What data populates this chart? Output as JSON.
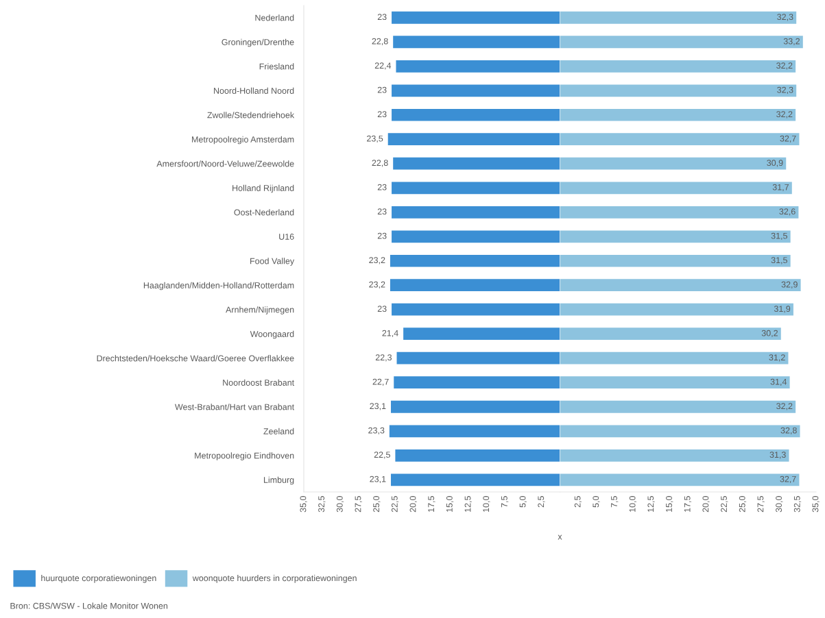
{
  "chart_data": [
    {
      "type": "bar",
      "orientation": "horizontal",
      "xlabel": "x",
      "categories": [
        "Nederland",
        "Groningen/Drenthe",
        "Friesland",
        "Noord-Holland Noord",
        "Zwolle/Stedendriehoek",
        "Metropoolregio Amsterdam",
        "Amersfoort/Noord-Veluwe/Zeewolde",
        "Holland Rijnland",
        "Oost-Nederland",
        "U16",
        "Food Valley",
        "Haaglanden/Midden-Holland/Rotterdam",
        "Arnhem/Nijmegen",
        "Woongaard",
        "Drechtsteden/Hoeksche Waard/Goeree Overflakkee",
        "Noordoost Brabant",
        "West-Brabant/Hart van Brabant",
        "Zeeland",
        "Metropoolregio Eindhoven",
        "Limburg"
      ],
      "series": [
        {
          "name": "huurquote corporatiewoningen",
          "color": "#3b8fd4",
          "values": [
            23,
            22.8,
            22.4,
            23,
            23,
            23.5,
            22.8,
            23,
            23,
            23,
            23.2,
            23.2,
            23,
            21.4,
            22.3,
            22.7,
            23.1,
            23.3,
            22.5,
            23.1
          ],
          "value_labels": [
            "23",
            "22,8",
            "22,4",
            "23",
            "23",
            "23,5",
            "22,8",
            "23",
            "23",
            "23",
            "23,2",
            "23,2",
            "23",
            "21,4",
            "22,3",
            "22,7",
            "23,1",
            "23,3",
            "22,5",
            "23,1"
          ]
        }
      ],
      "xlim": [
        35,
        0
      ],
      "xticks": [
        {
          "value": 35,
          "label": "35,0"
        },
        {
          "value": 32.5,
          "label": "32,5"
        },
        {
          "value": 30,
          "label": "30,0"
        },
        {
          "value": 27.5,
          "label": "27,5"
        },
        {
          "value": 25,
          "label": "25,0"
        },
        {
          "value": 22.5,
          "label": "22,5"
        },
        {
          "value": 20,
          "label": "20,0"
        },
        {
          "value": 17.5,
          "label": "17,5"
        },
        {
          "value": 15,
          "label": "15,0"
        },
        {
          "value": 12.5,
          "label": "12,5"
        },
        {
          "value": 10,
          "label": "10,0"
        },
        {
          "value": 7.5,
          "label": "7,5"
        },
        {
          "value": 5,
          "label": "5,0"
        },
        {
          "value": 2.5,
          "label": "2,5"
        }
      ],
      "legend": "bottom left",
      "annotations": [
        "Bron: CBS/WSW - Lokale Monitor Wonen"
      ]
    },
    {
      "type": "bar",
      "orientation": "horizontal",
      "tick_labels": "x",
      "categories": [
        "Nederland",
        "Groningen/Drenthe",
        "Friesland",
        "Noord-Holland Noord",
        "Zwolle/Stedendriehoek",
        "Metropoolregio Amsterdam",
        "Amersfoort/Noord-Veluwe/Zeewolde",
        "Holland Rijnland",
        "Oost-Nederland",
        "U16",
        "Food Valley",
        "Haaglanden/Midden-Holland/Rotterdam",
        "Arnhem/Nijmegen",
        "Woongaard",
        "Drechtsteden/Hoeksche Waard/Goeree Overflakkee",
        "Noordoost Brabant",
        "West-Brabant/Hart van Brabant",
        "Zeeland",
        "Metropoolregio Eindhoven",
        "Limburg"
      ],
      "series": [
        {
          "name": "woonquote huurders in corporatiewoningen",
          "color": "#8dc3df",
          "values": [
            32.3,
            33.2,
            32.2,
            32.3,
            32.2,
            32.7,
            30.9,
            31.7,
            32.6,
            31.5,
            31.5,
            32.9,
            31.9,
            30.2,
            31.2,
            31.4,
            32.2,
            32.8,
            31.3,
            32.7
          ],
          "value_labels": [
            "32,3",
            "33,2",
            "32,2",
            "32,3",
            "32,2",
            "32,7",
            "30,9",
            "31,7",
            "32,6",
            "31,5",
            "31,5",
            "32,9",
            "31,9",
            "30,2",
            "31,2",
            "31,4",
            "32,2",
            "32,8",
            "31,3",
            "32,7"
          ]
        }
      ],
      "xlim": [
        0,
        35
      ],
      "xticks": [
        {
          "value": 2.5,
          "label": "2,5"
        },
        {
          "value": 5,
          "label": "5,0"
        },
        {
          "value": 7.5,
          "label": "7,5"
        },
        {
          "value": 10,
          "label": "10,0"
        },
        {
          "value": 12.5,
          "label": "12,5"
        },
        {
          "value": 15,
          "label": "15,0"
        },
        {
          "value": 17.5,
          "label": "17,5"
        },
        {
          "value": 20,
          "label": "20,0"
        },
        {
          "value": 22.5,
          "label": "22,5"
        },
        {
          "value": 25,
          "label": "25,0"
        },
        {
          "value": 27.5,
          "label": "27,5"
        },
        {
          "value": 30,
          "label": "30,0"
        },
        {
          "value": 32.5,
          "label": "32,5"
        },
        {
          "value": 35,
          "label": "35,0"
        }
      ],
      "legend": "bottom left"
    }
  ]
}
